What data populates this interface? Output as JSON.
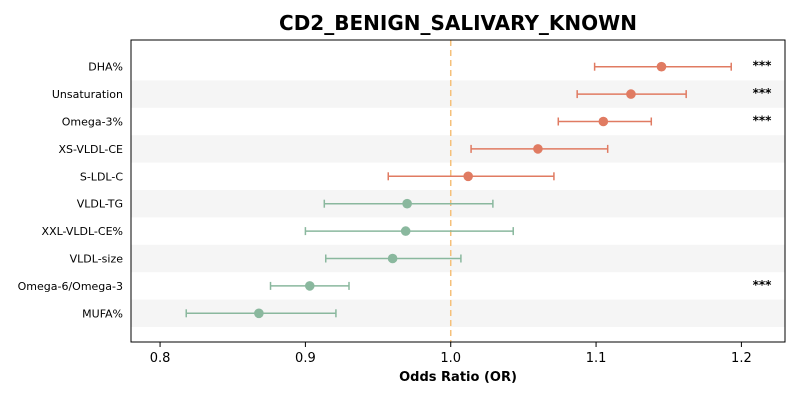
{
  "chart_data": {
    "type": "scatter",
    "title": "CD2_BENIGN_SALIVARY_KNOWN",
    "xlabel": "Odds Ratio (OR)",
    "ylabel": "",
    "xlim": [
      0.78,
      1.23
    ],
    "xticks": [
      "0.8",
      "0.9",
      "1.0",
      "1.1",
      "1.2"
    ],
    "xtick_values": [
      0.8,
      0.9,
      1.0,
      1.1,
      1.2
    ],
    "reference_line": 1.0,
    "grid": false,
    "row_shading": "alternating",
    "colors": {
      "positive": "#e07b62",
      "negative": "#8ab89e",
      "reference": "#f5c07a",
      "shade": "#f5f5f5"
    },
    "points": [
      {
        "label": "DHA%",
        "or": 1.145,
        "lo": 1.099,
        "hi": 1.193,
        "sig": "***"
      },
      {
        "label": "Unsaturation",
        "or": 1.124,
        "lo": 1.087,
        "hi": 1.162,
        "sig": "***"
      },
      {
        "label": "Omega-3%",
        "or": 1.105,
        "lo": 1.074,
        "hi": 1.138,
        "sig": "***"
      },
      {
        "label": "XS-VLDL-CE",
        "or": 1.06,
        "lo": 1.014,
        "hi": 1.108,
        "sig": ""
      },
      {
        "label": "S-LDL-C",
        "or": 1.012,
        "lo": 0.957,
        "hi": 1.071,
        "sig": ""
      },
      {
        "label": "VLDL-TG",
        "or": 0.97,
        "lo": 0.913,
        "hi": 1.029,
        "sig": ""
      },
      {
        "label": "XXL-VLDL-CE%",
        "or": 0.969,
        "lo": 0.9,
        "hi": 1.043,
        "sig": ""
      },
      {
        "label": "VLDL-size",
        "or": 0.96,
        "lo": 0.914,
        "hi": 1.007,
        "sig": ""
      },
      {
        "label": "Omega-6/Omega-3",
        "or": 0.903,
        "lo": 0.876,
        "hi": 0.93,
        "sig": "***"
      },
      {
        "label": "MUFA%",
        "or": 0.868,
        "lo": 0.818,
        "hi": 0.921,
        "sig": ""
      }
    ]
  }
}
